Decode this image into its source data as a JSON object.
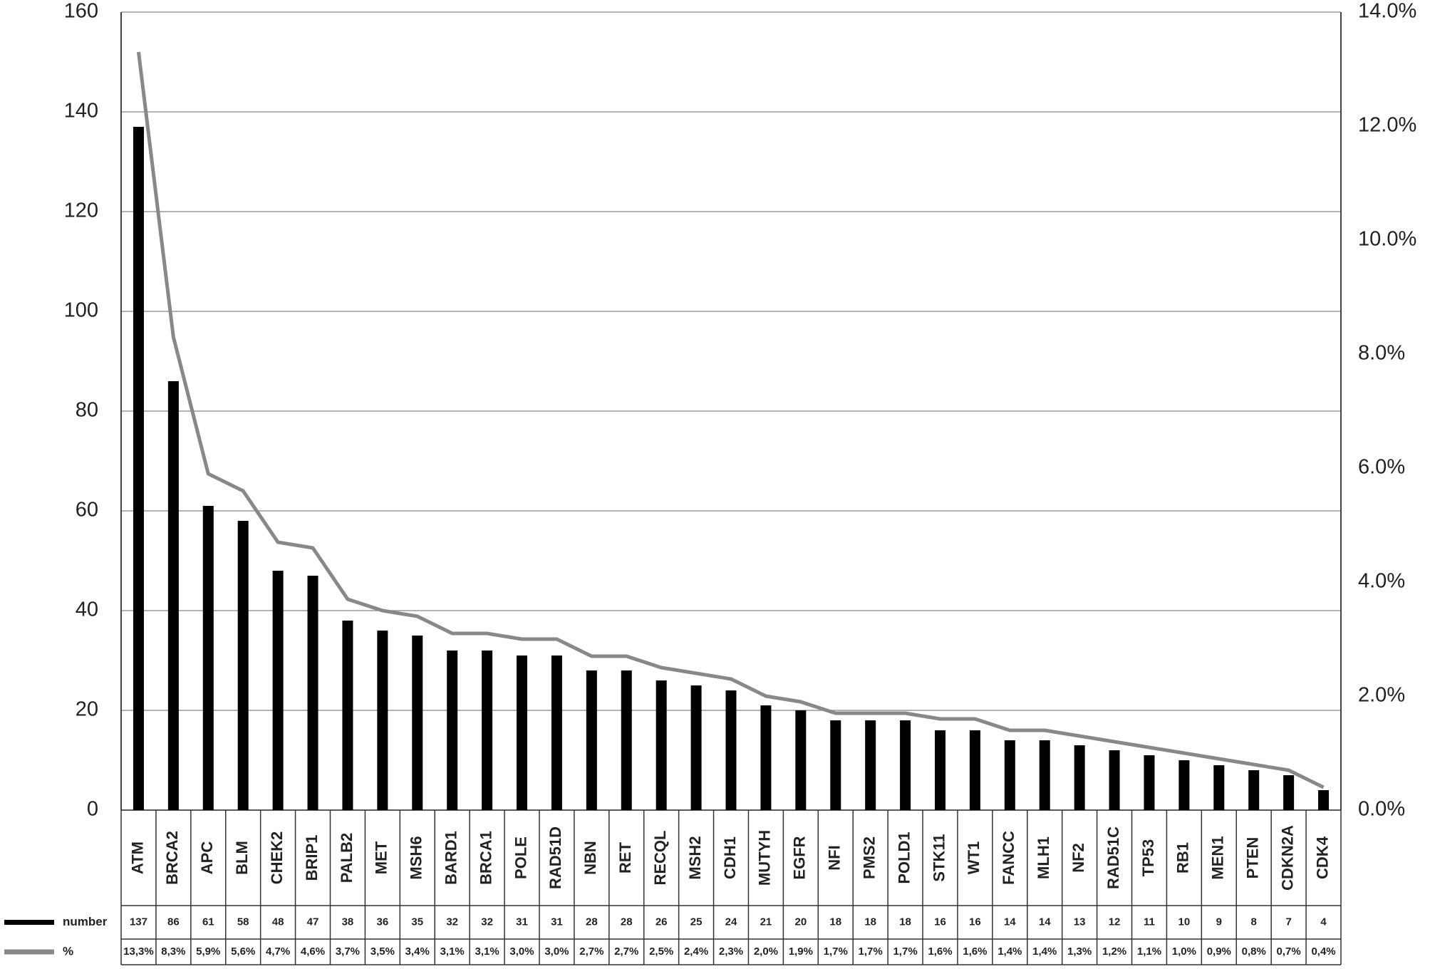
{
  "chart_data": {
    "type": "bar-line",
    "categories": [
      "ATM",
      "BRCA2",
      "APC",
      "BLM",
      "CHEK2",
      "BRIP1",
      "PALB2",
      "MET",
      "MSH6",
      "BARD1",
      "BRCA1",
      "POLE",
      "RAD51D",
      "NBN",
      "RET",
      "RECQL",
      "MSH2",
      "CDH1",
      "MUTYH",
      "EGFR",
      "NFI",
      "PMS2",
      "POLD1",
      "STK11",
      "WT1",
      "FANCC",
      "MLH1",
      "NF2",
      "RAD51C",
      "TP53",
      "RB1",
      "MEN1",
      "PTEN",
      "CDKN2A",
      "CDK4"
    ],
    "series": [
      {
        "name": "number",
        "type": "bar",
        "color": "#000000",
        "values": [
          137,
          86,
          61,
          58,
          48,
          47,
          38,
          36,
          35,
          32,
          32,
          31,
          31,
          28,
          28,
          26,
          25,
          24,
          21,
          20,
          18,
          18,
          18,
          16,
          16,
          14,
          14,
          13,
          12,
          11,
          10,
          9,
          8,
          7,
          4
        ]
      },
      {
        "name": "%",
        "type": "line",
        "axis": "y2",
        "color": "#888888",
        "values": [
          13.3,
          8.3,
          5.9,
          5.6,
          4.7,
          4.6,
          3.7,
          3.5,
          3.4,
          3.1,
          3.1,
          3.0,
          3.0,
          2.7,
          2.7,
          2.5,
          2.4,
          2.3,
          2.0,
          1.9,
          1.7,
          1.7,
          1.7,
          1.6,
          1.6,
          1.4,
          1.4,
          1.3,
          1.2,
          1.1,
          1.0,
          0.9,
          0.8,
          0.7,
          0.4
        ],
        "value_labels": [
          "13,3%",
          "8,3%",
          "5,9%",
          "5,6%",
          "4,7%",
          "4,6%",
          "3,7%",
          "3,5%",
          "3,4%",
          "3,1%",
          "3,1%",
          "3,0%",
          "3,0%",
          "2,7%",
          "2,7%",
          "2,5%",
          "2,4%",
          "2,3%",
          "2,0%",
          "1,9%",
          "1,7%",
          "1,7%",
          "1,7%",
          "1,6%",
          "1,6%",
          "1,4%",
          "1,4%",
          "1,3%",
          "1,2%",
          "1,1%",
          "1,0%",
          "0,9%",
          "0,8%",
          "0,7%",
          "0,4%"
        ]
      }
    ],
    "ylim": [
      0,
      160
    ],
    "yticks": [
      0,
      20,
      40,
      60,
      80,
      100,
      120,
      140,
      160
    ],
    "y2lim": [
      0,
      14
    ],
    "y2ticks": [
      {
        "value": 0,
        "label": "0.0%"
      },
      {
        "value": 2,
        "label": "2.0%"
      },
      {
        "value": 4,
        "label": "4.0%"
      },
      {
        "value": 6,
        "label": "6.0%"
      },
      {
        "value": 8,
        "label": "8.0%"
      },
      {
        "value": 10,
        "label": "10.0%"
      },
      {
        "value": 12,
        "label": "12.0%"
      },
      {
        "value": 14,
        "label": "14.0%"
      }
    ],
    "grid": true
  }
}
